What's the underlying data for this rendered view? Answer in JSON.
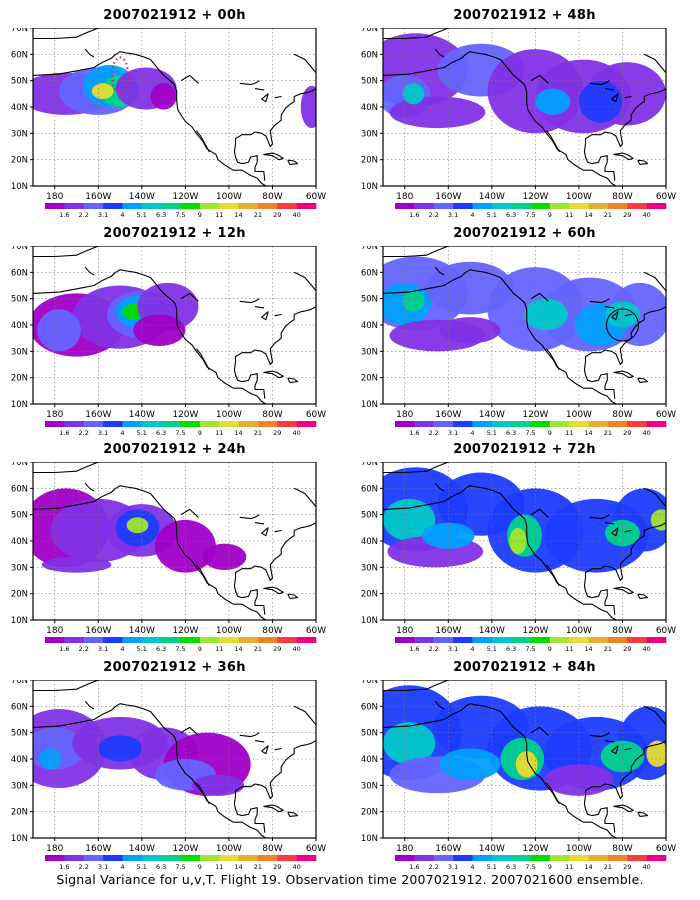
{
  "panels": [
    {
      "title": "2007021912 + 00h",
      "hours": 0,
      "show_target": true,
      "show_circle": false
    },
    {
      "title": "2007021912 + 12h",
      "hours": 12,
      "show_target": false,
      "show_circle": false
    },
    {
      "title": "2007021912 + 24h",
      "hours": 24,
      "show_target": false,
      "show_circle": false
    },
    {
      "title": "2007021912 + 36h",
      "hours": 36,
      "show_target": false,
      "show_circle": false
    },
    {
      "title": "2007021912 + 48h",
      "hours": 48,
      "show_target": false,
      "show_circle": false
    },
    {
      "title": "2007021912 + 60h",
      "hours": 60,
      "show_target": false,
      "show_circle": true
    },
    {
      "title": "2007021912 + 72h",
      "hours": 72,
      "show_target": false,
      "show_circle": false
    },
    {
      "title": "2007021912 + 84h",
      "hours": 84,
      "show_target": false,
      "show_circle": false
    }
  ],
  "lat_labels": [
    "70N",
    "60N",
    "50N",
    "40N",
    "30N",
    "20N",
    "10N"
  ],
  "lon_labels": [
    "180",
    "160W",
    "140W",
    "120W",
    "100W",
    "80W",
    "60W"
  ],
  "colorbar": {
    "labels": [
      "1.6",
      "2.2",
      "3.1",
      "4",
      "5.1",
      "6.3",
      "7.5",
      "9",
      "11",
      "14",
      "21",
      "29",
      "40"
    ],
    "colors": [
      "#a000c8",
      "#8232e6",
      "#6464ff",
      "#1e3cff",
      "#00a0ff",
      "#00c8c8",
      "#00d28c",
      "#00dc00",
      "#a0e632",
      "#e6dc32",
      "#e6af2d",
      "#f08228",
      "#fa3c3c",
      "#f00082"
    ]
  },
  "footer": "Signal Variance for u,v,T. Flight 19. Observation time 2007021912. 2007021600 ensemble."
}
